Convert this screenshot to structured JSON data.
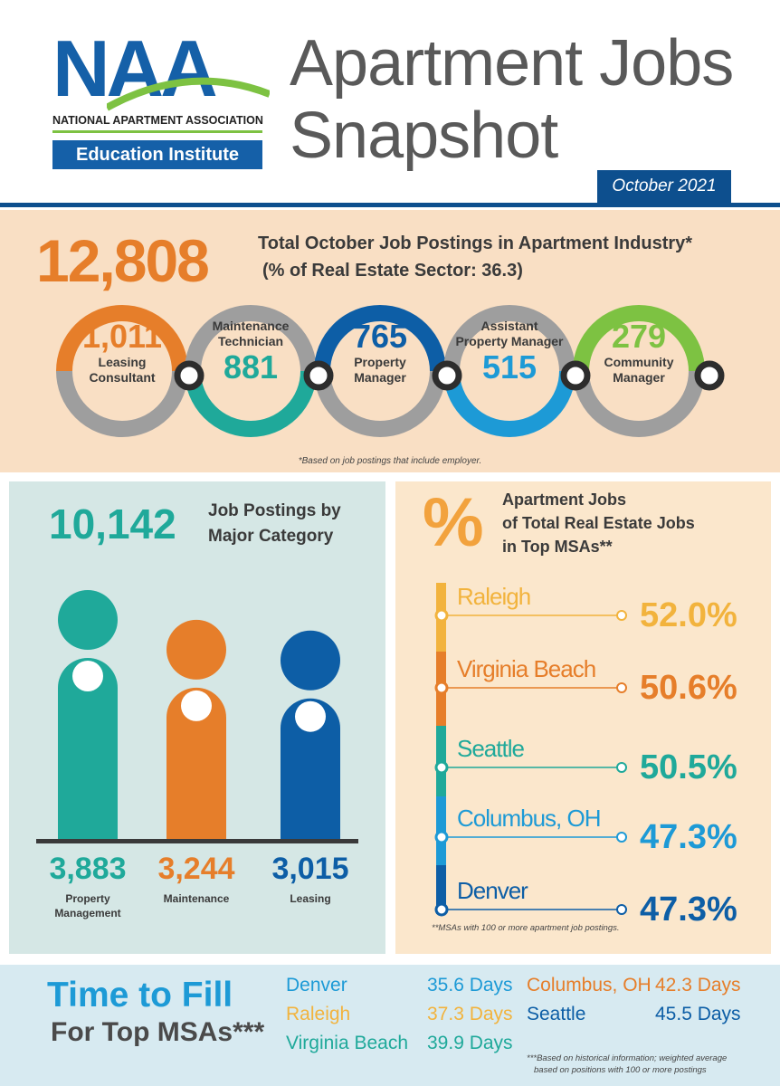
{
  "header": {
    "logo_letters": "NAA",
    "logo_org": "NATIONAL APARTMENT ASSOCIATION",
    "logo_sub": "Education Institute",
    "title_line1": "Apartment Jobs",
    "title_line2": "Snapshot",
    "date": "October 2021"
  },
  "totals": {
    "number": "12,808",
    "line1": "Total October Job Postings in Apartment Industry*",
    "line2": "(% of Real Estate Sector: 36.3)",
    "footnote": "*Based on job postings that include employer.",
    "rings": [
      {
        "value": "1,011",
        "label1": "Leasing",
        "label2": "Consultant",
        "color": "#e67e2a"
      },
      {
        "value": "881",
        "label1": "Maintenance",
        "label2": "Technician",
        "color": "#1fa99a"
      },
      {
        "value": "765",
        "label1": "Property",
        "label2": "Manager",
        "color": "#0d5ea6"
      },
      {
        "value": "515",
        "label1": "Assistant",
        "label2": "Property Manager",
        "color": "#1d9ad6"
      },
      {
        "value": "279",
        "label1": "Community",
        "label2": "Manager",
        "color": "#7dc242"
      }
    ]
  },
  "category": {
    "number": "10,142",
    "title1": "Job Postings by",
    "title2": "Major Category",
    "items": [
      {
        "value": "3,883",
        "label1": "Property",
        "label2": "Management",
        "amount": 3883,
        "color": "#1fa99a"
      },
      {
        "value": "3,244",
        "label1": "Maintenance",
        "label2": "",
        "amount": 3244,
        "color": "#e67e2a"
      },
      {
        "value": "3,015",
        "label1": "Leasing",
        "label2": "",
        "amount": 3015,
        "color": "#0d5ea6"
      }
    ]
  },
  "msa": {
    "symbol": "%",
    "title1": "Apartment Jobs",
    "title2": "of Total Real Estate Jobs",
    "title3": "in Top MSAs**",
    "footnote": "**MSAs with 100 or more apartment job postings.",
    "items": [
      {
        "name": "Raleigh",
        "pct": "52.0%",
        "color": "#f2b33d"
      },
      {
        "name": "Virginia Beach",
        "pct": "50.6%",
        "color": "#e67e2a"
      },
      {
        "name": "Seattle",
        "pct": "50.5%",
        "color": "#1fa99a"
      },
      {
        "name": "Columbus, OH",
        "pct": "47.3%",
        "color": "#1d9ad6"
      },
      {
        "name": "Denver",
        "pct": "47.3%",
        "color": "#0d5ea6"
      }
    ]
  },
  "fill": {
    "title1": "Time to Fill",
    "title2": "For Top MSAs***",
    "footnote1": "***Based on historical information; weighted average",
    "footnote2": "based on positions with 100 or more postings",
    "items": [
      {
        "name": "Denver",
        "days": "35.6 Days",
        "color": "#1d9ad6"
      },
      {
        "name": "Raleigh",
        "days": "37.3 Days",
        "color": "#f2b33d"
      },
      {
        "name": "Virginia Beach",
        "days": "39.9 Days",
        "color": "#1fa99a"
      },
      {
        "name": "Columbus, OH",
        "days": "42.3 Days",
        "color": "#e67e2a"
      },
      {
        "name": "Seattle",
        "days": "45.5 Days",
        "color": "#0d5ea6"
      }
    ]
  }
}
